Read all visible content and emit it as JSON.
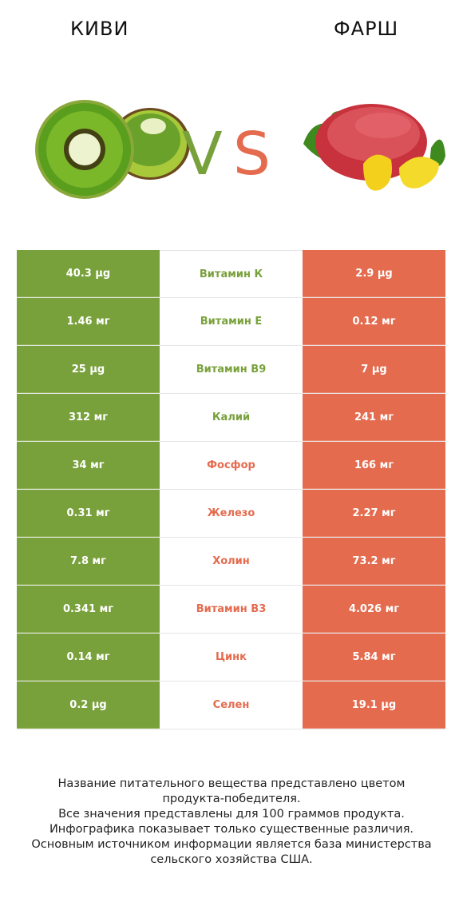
{
  "header": {
    "left_title": "КИВИ",
    "right_title": "ФАРШ",
    "vs": "VS"
  },
  "colors": {
    "kiwi": "#79a13b",
    "meat": "#e46b4e"
  },
  "icons": {
    "left": "kiwi-image",
    "right": "minced-meat-image"
  },
  "rows": [
    {
      "left": "40.3 µg",
      "nutrient": "Витамин К",
      "right": "2.9 µg",
      "winner": "left"
    },
    {
      "left": "1.46 мг",
      "nutrient": "Витамин Е",
      "right": "0.12 мг",
      "winner": "left"
    },
    {
      "left": "25 µg",
      "nutrient": "Витамин B9",
      "right": "7 µg",
      "winner": "left"
    },
    {
      "left": "312 мг",
      "nutrient": "Калий",
      "right": "241 мг",
      "winner": "left"
    },
    {
      "left": "34 мг",
      "nutrient": "Фосфор",
      "right": "166 мг",
      "winner": "right"
    },
    {
      "left": "0.31 мг",
      "nutrient": "Железо",
      "right": "2.27 мг",
      "winner": "right"
    },
    {
      "left": "7.8 мг",
      "nutrient": "Холин",
      "right": "73.2 мг",
      "winner": "right"
    },
    {
      "left": "0.341 мг",
      "nutrient": "Витамин B3",
      "right": "4.026 мг",
      "winner": "right"
    },
    {
      "left": "0.14 мг",
      "nutrient": "Цинк",
      "right": "5.84 мг",
      "winner": "right"
    },
    {
      "left": "0.2 µg",
      "nutrient": "Селен",
      "right": "19.1 µg",
      "winner": "right"
    }
  ],
  "footer": {
    "line1": "Название питательного вещества представлено цветом",
    "line2": "продукта-победителя.",
    "line3": "Все значения представлены для 100 граммов продукта.",
    "line4": "Инфографика показывает только существенные различия.",
    "line5": "Основным источником информации является база министерства",
    "line6": "сельского хозяйства США."
  }
}
